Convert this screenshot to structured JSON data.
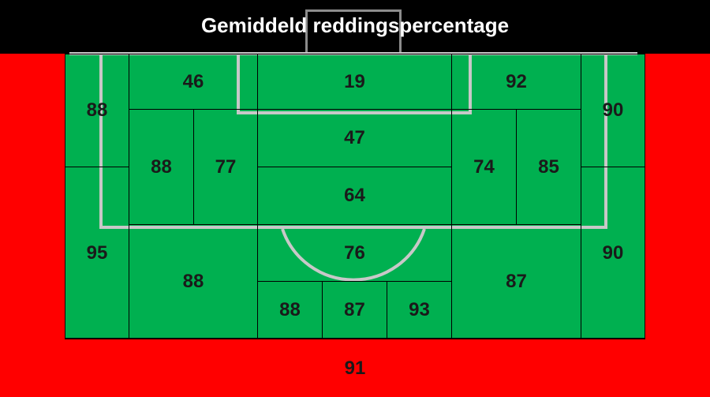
{
  "title": "Gemiddeld reddingspercentage",
  "colors": {
    "outside": "#ff0000",
    "field": "#00b050",
    "header": "#000000",
    "lines": "#c8c8c8"
  },
  "zones": {
    "outside_bottom": "91",
    "left_top": "88",
    "left_bottom": "95",
    "right_top": "90",
    "right_bottom": "90",
    "top_left": "46",
    "top_center": "19",
    "top_right": "92",
    "mid_left_outer": "88",
    "mid_left_inner": "77",
    "center_upper": "47",
    "center_lower": "64",
    "mid_right_inner": "74",
    "mid_right_outer": "85",
    "lower_left": "88",
    "lower_center": "76",
    "lower_right": "87",
    "bottom_left": "88",
    "bottom_center": "87",
    "bottom_right": "93"
  }
}
